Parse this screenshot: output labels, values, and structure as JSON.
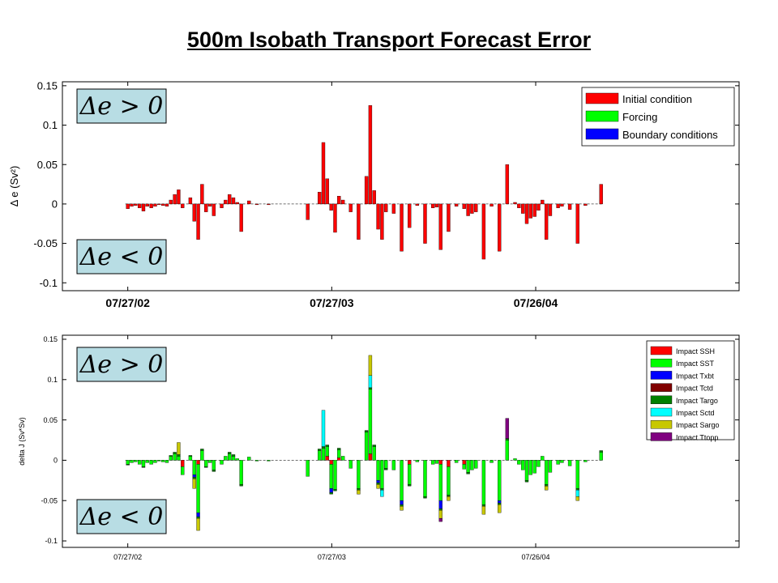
{
  "title": "500m Isobath Transport Forecast Error",
  "chart_data": [
    {
      "type": "bar",
      "stacked": true,
      "ylabel": "Δ e (Sv²)",
      "ylim": [
        -0.11,
        0.155
      ],
      "yticks": [
        0.15,
        0.1,
        0.05,
        0,
        -0.05,
        -0.1
      ],
      "ytick_labels": [
        "0.15",
        "0.1",
        "0.05",
        "0",
        "-0.05",
        "-0.1"
      ],
      "x_axis": "date",
      "xlim": [
        "2002-04-01",
        "2005-07-25"
      ],
      "xticks": [
        "2002-07-27",
        "2003-07-27",
        "2004-07-26"
      ],
      "xtick_labels": [
        "07/27/02",
        "07/27/03",
        "07/26/04"
      ],
      "legend_position": "top-right",
      "annotations": [
        "Δe > 0",
        "Δe < 0"
      ],
      "series": [
        {
          "name": "Initial condition",
          "color": "#ff0000"
        },
        {
          "name": "Forcing",
          "color": "#00ff00"
        },
        {
          "name": "Boundary conditions",
          "color": "#0000ff"
        }
      ],
      "dates": [
        "2002-07-27",
        "2002-08-03",
        "2002-08-10",
        "2002-08-17",
        "2002-08-24",
        "2002-08-31",
        "2002-09-07",
        "2002-09-14",
        "2002-09-21",
        "2002-09-28",
        "2002-10-05",
        "2002-10-12",
        "2002-10-19",
        "2002-10-26",
        "2002-11-02",
        "2002-11-16",
        "2002-11-23",
        "2002-11-30",
        "2002-12-07",
        "2002-12-14",
        "2002-12-21",
        "2002-12-28",
        "2003-01-11",
        "2003-01-18",
        "2003-01-25",
        "2003-02-01",
        "2003-02-08",
        "2003-02-15",
        "2003-03-01",
        "2003-03-15",
        "2003-04-05",
        "2003-06-14",
        "2003-07-05",
        "2003-07-12",
        "2003-07-19",
        "2003-07-26",
        "2003-08-02",
        "2003-08-09",
        "2003-08-16",
        "2003-08-30",
        "2003-09-13",
        "2003-09-27",
        "2003-10-04",
        "2003-10-11",
        "2003-10-18",
        "2003-10-25",
        "2003-11-01",
        "2003-11-15",
        "2003-11-29",
        "2003-12-13",
        "2003-12-27",
        "2004-01-10",
        "2004-01-24",
        "2004-01-31",
        "2004-02-07",
        "2004-02-21",
        "2004-03-06",
        "2004-03-20",
        "2004-03-27",
        "2004-04-03",
        "2004-04-10",
        "2004-04-24",
        "2004-05-08",
        "2004-05-22",
        "2004-06-05",
        "2004-06-19",
        "2004-06-26",
        "2004-07-03",
        "2004-07-10",
        "2004-07-17",
        "2004-07-24",
        "2004-07-31",
        "2004-08-07",
        "2004-08-14",
        "2004-08-21",
        "2004-09-04",
        "2004-09-11",
        "2004-09-25",
        "2004-10-09",
        "2004-10-23",
        "2004-11-20"
      ],
      "values": {
        "Initial condition": [
          -0.006,
          -0.003,
          -0.002,
          -0.005,
          -0.009,
          -0.003,
          -0.005,
          -0.003,
          -0.001,
          -0.002,
          -0.003,
          0.005,
          0.012,
          0.018,
          -0.005,
          0.008,
          -0.022,
          -0.045,
          0.025,
          -0.01,
          -0.003,
          -0.015,
          -0.005,
          0.005,
          0.012,
          0.008,
          0.002,
          -0.035,
          0.004,
          -0.001,
          -0.001,
          -0.02,
          0.015,
          0.078,
          0.032,
          -0.008,
          -0.036,
          0.01,
          0.005,
          -0.01,
          -0.045,
          0.035,
          0.125,
          0.017,
          -0.032,
          -0.045,
          -0.01,
          -0.012,
          -0.06,
          -0.03,
          -0.002,
          -0.05,
          -0.005,
          -0.004,
          -0.058,
          -0.035,
          -0.003,
          -0.006,
          -0.015,
          -0.012,
          -0.01,
          -0.07,
          -0.003,
          -0.06,
          0.05,
          0.002,
          -0.005,
          -0.012,
          -0.025,
          -0.018,
          -0.016,
          -0.008,
          0.005,
          -0.045,
          -0.015,
          -0.005,
          -0.003,
          -0.007,
          -0.05,
          -0.002,
          0.025
        ]
      }
    },
    {
      "type": "bar",
      "stacked": true,
      "ylabel": "delta J (Sv*Sv)",
      "ylim": [
        -0.108,
        0.155
      ],
      "yticks": [
        0.15,
        0.1,
        0.05,
        0,
        -0.05,
        -0.1
      ],
      "ytick_labels": [
        "0.15",
        "0.1",
        "0.05",
        "0",
        "-0.05",
        "-0.1"
      ],
      "x_axis": "date",
      "xlim": [
        "2002-04-01",
        "2005-07-25"
      ],
      "xticks": [
        "2002-07-27",
        "2003-07-27",
        "2004-07-26"
      ],
      "xtick_labels": [
        "07/27/02",
        "07/27/03",
        "07/26/04"
      ],
      "legend_position": "top-right",
      "annotations": [
        "Δe > 0",
        "Δe < 0"
      ],
      "series": [
        {
          "name": "Impact SSH",
          "color": "#ff0000"
        },
        {
          "name": "Impact SST",
          "color": "#00ff00"
        },
        {
          "name": "Impact Txbt",
          "color": "#0000ff"
        },
        {
          "name": "Impact Tctd",
          "color": "#800000"
        },
        {
          "name": "Impact Targo",
          "color": "#008000"
        },
        {
          "name": "Impact Sctd",
          "color": "#00ffff"
        },
        {
          "name": "Impact Sargo",
          "color": "#c8c800"
        },
        {
          "name": "Impact Ttopp",
          "color": "#800080"
        }
      ],
      "dates": [
        "2002-07-27",
        "2002-08-03",
        "2002-08-10",
        "2002-08-17",
        "2002-08-24",
        "2002-08-31",
        "2002-09-07",
        "2002-09-14",
        "2002-09-21",
        "2002-09-28",
        "2002-10-05",
        "2002-10-12",
        "2002-10-19",
        "2002-10-26",
        "2002-11-02",
        "2002-11-16",
        "2002-11-23",
        "2002-11-30",
        "2002-12-07",
        "2002-12-14",
        "2002-12-21",
        "2002-12-28",
        "2003-01-11",
        "2003-01-18",
        "2003-01-25",
        "2003-02-01",
        "2003-02-08",
        "2003-02-15",
        "2003-03-01",
        "2003-03-15",
        "2003-04-05",
        "2003-06-14",
        "2003-07-05",
        "2003-07-12",
        "2003-07-19",
        "2003-07-26",
        "2003-08-02",
        "2003-08-09",
        "2003-08-16",
        "2003-08-30",
        "2003-09-13",
        "2003-09-27",
        "2003-10-04",
        "2003-10-11",
        "2003-10-18",
        "2003-10-25",
        "2003-11-01",
        "2003-11-15",
        "2003-11-29",
        "2003-12-13",
        "2003-12-27",
        "2004-01-10",
        "2004-01-24",
        "2004-01-31",
        "2004-02-07",
        "2004-02-21",
        "2004-03-06",
        "2004-03-20",
        "2004-03-27",
        "2004-04-03",
        "2004-04-10",
        "2004-04-24",
        "2004-05-08",
        "2004-05-22",
        "2004-06-05",
        "2004-06-19",
        "2004-06-26",
        "2004-07-03",
        "2004-07-10",
        "2004-07-17",
        "2004-07-24",
        "2004-07-31",
        "2004-08-07",
        "2004-08-14",
        "2004-08-21",
        "2004-09-04",
        "2004-09-11",
        "2004-09-25",
        "2004-10-09",
        "2004-10-23",
        "2004-11-20"
      ],
      "values": {
        "Impact SSH": [
          0,
          0,
          0,
          0,
          0,
          0,
          0,
          0,
          0,
          0,
          0,
          0,
          0,
          0,
          -0.008,
          0,
          0,
          -0.005,
          0,
          0,
          0,
          0,
          0,
          0,
          0,
          0,
          0,
          0,
          0,
          0,
          0,
          0,
          0,
          0,
          0.005,
          -0.005,
          0,
          0.003,
          0,
          0,
          0,
          0,
          0.008,
          0,
          0,
          0,
          0,
          0,
          0,
          -0.005,
          0,
          0,
          0,
          0,
          -0.005,
          -0.008,
          0,
          -0.005,
          0,
          0,
          0,
          0,
          0,
          0,
          0,
          0,
          0,
          0,
          0,
          0,
          0,
          0,
          0,
          0,
          0,
          0,
          0,
          0,
          0,
          0,
          0
        ],
        "Impact SST": [
          -0.005,
          -0.003,
          -0.002,
          -0.005,
          -0.008,
          -0.003,
          -0.005,
          -0.003,
          -0.001,
          -0.002,
          -0.003,
          0.005,
          0.008,
          0.005,
          -0.01,
          0.005,
          -0.018,
          -0.06,
          0.012,
          -0.008,
          -0.003,
          -0.012,
          -0.005,
          0.005,
          0.008,
          0.005,
          0.002,
          -0.03,
          0.004,
          -0.001,
          -0.001,
          -0.02,
          0.012,
          0.015,
          0.012,
          -0.03,
          -0.036,
          0.01,
          0.005,
          -0.01,
          -0.035,
          0.035,
          0.08,
          0.017,
          -0.025,
          -0.035,
          -0.01,
          -0.012,
          -0.05,
          -0.025,
          -0.002,
          -0.045,
          -0.005,
          -0.004,
          -0.045,
          -0.035,
          -0.003,
          -0.006,
          -0.015,
          -0.012,
          -0.01,
          -0.055,
          -0.003,
          -0.05,
          0.025,
          0.002,
          -0.005,
          -0.012,
          -0.025,
          -0.018,
          -0.016,
          -0.008,
          0.005,
          -0.03,
          -0.015,
          -0.005,
          -0.003,
          -0.007,
          -0.035,
          -0.002,
          0.01
        ],
        "Impact Txbt": [
          0,
          0,
          0,
          0,
          0,
          0,
          0,
          0,
          0,
          0,
          0,
          0,
          0,
          0,
          0,
          0,
          -0.003,
          -0.005,
          0,
          0,
          0,
          0,
          0,
          0,
          0,
          0,
          0,
          0,
          0,
          0,
          0,
          0,
          0,
          0,
          0,
          -0.005,
          0,
          0,
          0,
          0,
          0,
          0,
          0,
          0,
          -0.003,
          0,
          0,
          0,
          -0.005,
          0,
          0,
          0,
          0,
          0,
          -0.01,
          0,
          0,
          0,
          0,
          0,
          0,
          0,
          0,
          -0.003,
          0,
          0,
          0,
          0,
          0,
          0,
          0,
          0,
          0,
          0,
          0,
          0,
          0,
          0,
          0,
          0,
          0
        ],
        "Impact Tctd": [
          0,
          0,
          0,
          0,
          0,
          0,
          0,
          0,
          0,
          0,
          0,
          0,
          0,
          0,
          0,
          0,
          0,
          0,
          0,
          0,
          0,
          0,
          0,
          0,
          0,
          0,
          0,
          0,
          0,
          0,
          0,
          0,
          0,
          0,
          0,
          0,
          0,
          0,
          0,
          0,
          0,
          0,
          0,
          0,
          0,
          0,
          0,
          0,
          0,
          0,
          0,
          0,
          0,
          0,
          0,
          0,
          0,
          0,
          0,
          0,
          0,
          0,
          0,
          0,
          0,
          0,
          0,
          0,
          0,
          0,
          0,
          0,
          0,
          0,
          0,
          0,
          0,
          0,
          0,
          0,
          0
        ],
        "Impact Targo": [
          -0.001,
          0,
          0,
          0,
          -0.001,
          0,
          0,
          0,
          0,
          0,
          0,
          0.001,
          0.002,
          0.002,
          0,
          0.001,
          -0.002,
          -0.002,
          0.002,
          -0.001,
          0,
          -0.002,
          0,
          0,
          0.002,
          0.002,
          0,
          -0.002,
          0,
          0,
          0,
          0,
          0.002,
          0.002,
          0.002,
          -0.002,
          -0.002,
          0.002,
          0,
          0,
          -0.002,
          0.002,
          0.002,
          0.002,
          -0.002,
          -0.002,
          -0.002,
          0,
          -0.002,
          -0.002,
          0,
          -0.002,
          0,
          0,
          -0.002,
          -0.002,
          0,
          0,
          -0.002,
          0,
          0,
          -0.002,
          0,
          -0.002,
          0.002,
          0,
          0,
          0,
          -0.002,
          0,
          0,
          0,
          0,
          -0.002,
          0,
          0,
          0,
          0,
          -0.002,
          0,
          0.002
        ],
        "Impact Sctd": [
          0,
          0,
          0,
          0,
          0,
          0,
          0,
          0,
          0,
          0,
          0,
          0,
          0,
          0,
          0,
          0,
          0,
          0,
          0,
          0,
          0,
          0,
          0,
          0,
          0,
          0,
          0,
          0,
          0,
          0,
          0,
          0,
          0,
          0.045,
          0,
          0,
          0,
          0,
          0,
          0,
          0,
          0,
          0.015,
          0,
          0,
          -0.008,
          0,
          0,
          0,
          0,
          0,
          0,
          0,
          0,
          0,
          0,
          0,
          0,
          0,
          0,
          0,
          0,
          0,
          0,
          0,
          0,
          0,
          0,
          0,
          0,
          0,
          0,
          0,
          0,
          0,
          0,
          0,
          0,
          -0.008,
          0,
          0
        ],
        "Impact Sargo": [
          0,
          0,
          0,
          0,
          0,
          0,
          0,
          0,
          0,
          0,
          0,
          0,
          0,
          0.015,
          0,
          0,
          -0.012,
          -0.015,
          0,
          0,
          0,
          0,
          0,
          0,
          0,
          0,
          0,
          0,
          0,
          0,
          0,
          0,
          0,
          0,
          0,
          0,
          0,
          0,
          0,
          0,
          -0.005,
          0,
          0.025,
          0,
          -0.005,
          0,
          0,
          0,
          -0.005,
          0,
          0,
          0,
          0,
          0,
          -0.01,
          -0.005,
          0,
          0,
          0,
          0,
          0,
          -0.01,
          0,
          -0.01,
          0,
          0,
          0,
          0,
          0,
          0,
          0,
          0,
          0,
          -0.005,
          0,
          0,
          0,
          0,
          -0.005,
          0,
          0
        ],
        "Impact Ttopp": [
          0,
          0,
          0,
          0,
          0,
          0,
          0,
          0,
          0,
          0,
          0,
          0,
          0,
          0,
          0,
          0,
          0,
          0,
          0,
          0,
          0,
          0,
          0,
          0,
          0,
          0,
          0,
          0,
          0,
          0,
          0,
          0,
          0,
          0,
          0,
          0,
          0,
          0,
          0,
          0,
          0,
          0,
          0,
          0,
          0,
          0,
          0,
          0,
          0,
          0,
          0,
          0,
          0,
          0,
          -0.004,
          0,
          0,
          0,
          0,
          0,
          0,
          0,
          0,
          0,
          0.025,
          0,
          0,
          0,
          0,
          0,
          0,
          0,
          0,
          0,
          0,
          0,
          0,
          0,
          0,
          0,
          0
        ]
      }
    }
  ]
}
